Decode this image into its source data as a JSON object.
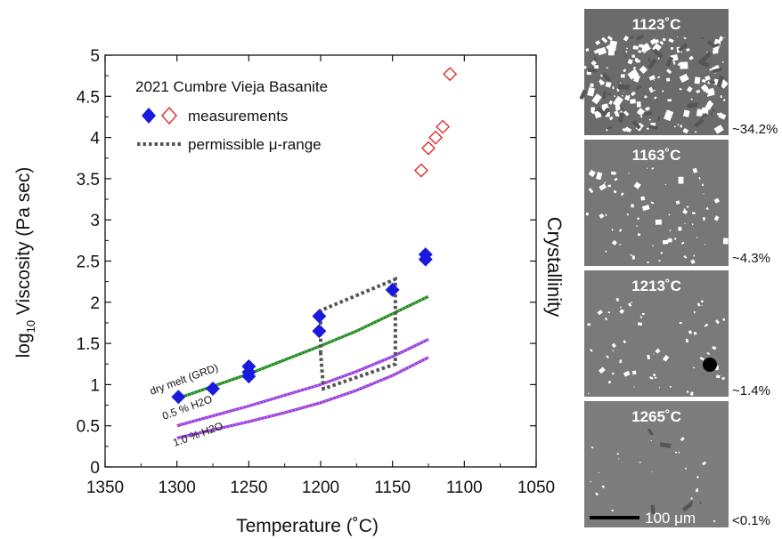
{
  "chart_data": {
    "type": "scatter",
    "title": "2021 Cumbre Vieja Basanite",
    "xlabel": "Temperature (˚C)",
    "ylabel_main": "log",
    "ylabel_sub": "10",
    "ylabel_rest": " Viscosity (Pa sec)",
    "xlim": [
      1350,
      1050
    ],
    "ylim": [
      0,
      5
    ],
    "x_ticks": [
      1350,
      1300,
      1250,
      1200,
      1150,
      1100,
      1050
    ],
    "y_ticks": [
      0,
      0.5,
      1,
      1.5,
      2,
      2.5,
      3,
      3.5,
      4,
      4.5,
      5
    ],
    "y_tick_labels": [
      "0",
      "0.5",
      "1",
      "1.5",
      "2",
      "2.5",
      "3",
      "3.5",
      "4",
      "4.5",
      "5"
    ],
    "legend": {
      "measurements": "measurements",
      "range": "permissible μ-range"
    },
    "colors": {
      "filled": "#1a1adf",
      "open": "#e62a2a",
      "dry": "#1e8c1e",
      "water": "#9b3de0",
      "range": "#555555"
    },
    "filled_points": [
      {
        "x": 1299,
        "y": 0.85
      },
      {
        "x": 1275,
        "y": 0.95
      },
      {
        "x": 1250,
        "y": 1.1
      },
      {
        "x": 1250,
        "y": 1.15
      },
      {
        "x": 1250,
        "y": 1.22
      },
      {
        "x": 1201,
        "y": 1.65
      },
      {
        "x": 1201,
        "y": 1.83
      },
      {
        "x": 1150,
        "y": 2.15
      },
      {
        "x": 1127,
        "y": 2.52
      },
      {
        "x": 1127,
        "y": 2.58
      }
    ],
    "open_points": [
      {
        "x": 1130,
        "y": 3.6
      },
      {
        "x": 1125,
        "y": 3.87
      },
      {
        "x": 1120,
        "y": 4.0
      },
      {
        "x": 1115,
        "y": 4.13
      },
      {
        "x": 1110,
        "y": 4.77
      }
    ],
    "curves": [
      {
        "label": "dry melt (GRD)",
        "x": [
          1300,
          1275,
          1250,
          1225,
          1200,
          1175,
          1150,
          1125
        ],
        "y": [
          0.83,
          0.98,
          1.13,
          1.3,
          1.47,
          1.65,
          1.86,
          2.07
        ]
      },
      {
        "label": "0.5 % H2O",
        "x": [
          1300,
          1275,
          1250,
          1225,
          1200,
          1175,
          1150,
          1125
        ],
        "y": [
          0.5,
          0.62,
          0.74,
          0.87,
          1.0,
          1.16,
          1.34,
          1.55
        ]
      },
      {
        "label": "1.0 % H2O",
        "x": [
          1300,
          1275,
          1250,
          1225,
          1200,
          1175,
          1150,
          1125
        ],
        "y": [
          0.35,
          0.45,
          0.55,
          0.66,
          0.78,
          0.93,
          1.11,
          1.33
        ]
      }
    ],
    "range_polygon": [
      {
        "x": 1200,
        "y": 1.38
      },
      {
        "x": 1200,
        "y": 1.9
      },
      {
        "x": 1148,
        "y": 2.28
      },
      {
        "x": 1148,
        "y": 1.25
      },
      {
        "x": 1198,
        "y": 0.95
      },
      {
        "x": 1200,
        "y": 1.38
      }
    ]
  },
  "panels": [
    {
      "temp": "1123˚C",
      "cryst": "~34.2%"
    },
    {
      "temp": "1163˚C",
      "cryst": "~4.3%"
    },
    {
      "temp": "1213˚C",
      "cryst": "~1.4%"
    },
    {
      "temp": "1265˚C",
      "cryst": "<0.1%"
    }
  ],
  "crystallinity_label": "Crystallinity",
  "scale_bar": "100 μm"
}
